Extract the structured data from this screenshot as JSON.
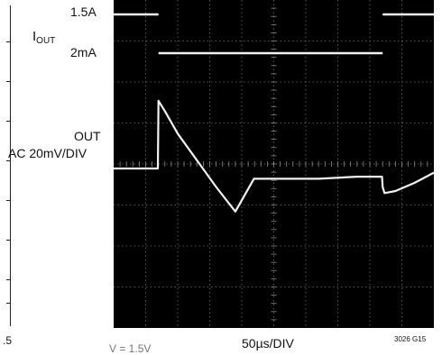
{
  "chart_data": {
    "type": "line",
    "title": "",
    "x_division": "50µs/DIV",
    "x_range_us": [
      0,
      500
    ],
    "divisions": {
      "x": 10,
      "y": 8
    },
    "grid": true,
    "background": "#000000",
    "trace_color": "#f2f2f2",
    "channels": [
      {
        "name_main": "I",
        "name_sub": "OUT",
        "levels": [
          {
            "label": "1.5A",
            "segments": [
              [
                0,
                70
              ],
              [
                420,
                500
              ]
            ]
          },
          {
            "label": "2mA",
            "segments": [
              [
                70,
                420
              ]
            ]
          }
        ]
      },
      {
        "name": "OUT",
        "scale": "AC 20mV/DIV",
        "time_us": [
          0,
          69,
          70,
          80,
          100,
          130,
          160,
          190,
          219,
          260,
          320,
          380,
          419,
          420,
          423,
          440,
          470,
          500
        ],
        "deviation_mV": [
          0,
          0,
          33,
          28,
          17,
          4,
          -9,
          -21,
          -5,
          -5,
          -5,
          -4,
          -4,
          -9,
          -12,
          -11,
          -7,
          -2
        ]
      }
    ]
  },
  "labels": {
    "current_high": "1.5A",
    "current_low": "2mA",
    "out_name": "OUT",
    "out_scale": "AC 20mV/DIV",
    "timebase": "50µs/DIV",
    "figure_id": "3026 G15",
    "left_footer": ".5",
    "vin_partial": "V = 1.5V"
  }
}
